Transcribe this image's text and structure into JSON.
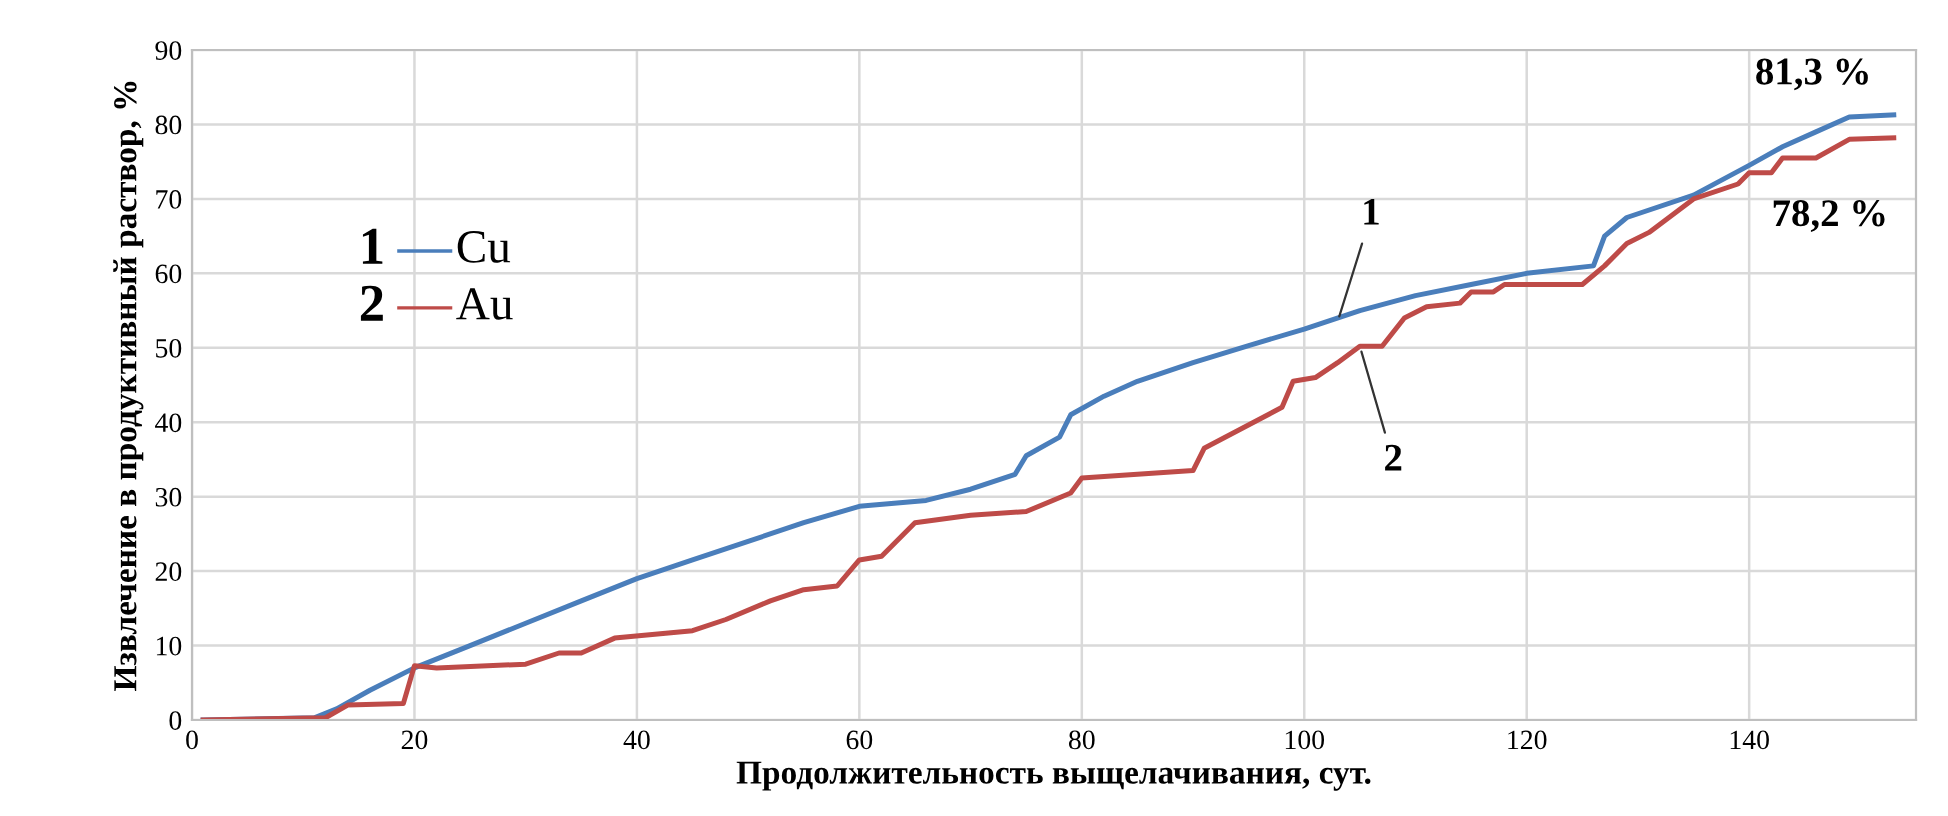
{
  "chart_data": {
    "type": "line",
    "xlabel": "Продолжительность выщелачивания, сут.",
    "ylabel": "Извлечение в продуктивный раствор, %",
    "xlim": [
      0,
      155
    ],
    "ylim": [
      0,
      90
    ],
    "xticks": [
      0,
      20,
      40,
      60,
      80,
      100,
      120,
      140
    ],
    "yticks": [
      0,
      10,
      20,
      30,
      40,
      50,
      60,
      70,
      80,
      90
    ],
    "grid": true,
    "legend": "top left",
    "series": [
      {
        "name": "Cu",
        "color": "#4a7ebb",
        "x": [
          1,
          11,
          13,
          16,
          20,
          25,
          30,
          35,
          40,
          45,
          50,
          55,
          60,
          66,
          70,
          74,
          75,
          78,
          79,
          82,
          85,
          90,
          95,
          100,
          105,
          110,
          115,
          120,
          126,
          127,
          129,
          135,
          140,
          143,
          146,
          149,
          153
        ],
        "values": [
          0,
          0.3,
          1.5,
          4,
          7,
          10,
          13,
          16,
          19,
          21.5,
          24,
          26.5,
          28.7,
          29.5,
          31,
          33,
          35.5,
          38,
          41,
          43.5,
          45.5,
          48,
          50.3,
          52.5,
          55,
          57,
          58.5,
          60,
          61,
          65,
          67.5,
          70.5,
          74.5,
          77,
          79,
          81,
          81.3
        ]
      },
      {
        "name": "Au",
        "color": "#be4b48",
        "x": [
          1,
          12,
          14,
          19,
          20,
          22,
          30,
          33,
          35,
          38,
          45,
          48,
          52,
          55,
          58,
          60,
          62,
          65,
          70,
          75,
          79,
          80,
          90,
          91,
          98,
          99,
          101,
          103,
          105,
          107,
          109,
          111,
          114,
          115,
          117,
          118,
          125,
          127,
          129,
          131,
          135,
          139,
          140,
          142,
          143,
          146,
          149,
          153
        ],
        "values": [
          0,
          0.3,
          2,
          2.2,
          7.3,
          7,
          7.5,
          9,
          9,
          11,
          12,
          13.5,
          16,
          17.5,
          18,
          21.5,
          22,
          26.5,
          27.5,
          28,
          30.5,
          32.5,
          33.5,
          36.5,
          42,
          45.5,
          46,
          48,
          50.2,
          50.2,
          54,
          55.5,
          56,
          57.5,
          57.5,
          58.5,
          58.5,
          61,
          64,
          65.5,
          70,
          72,
          73.5,
          73.5,
          75.5,
          75.5,
          78,
          78.2
        ]
      }
    ],
    "annotations": [
      "1",
      "2",
      {
        "text": "1",
        "x": 103,
        "y": 53.5
      },
      {
        "text": "2",
        "x": 105,
        "y": 50.2
      },
      {
        "text": "81,3 %",
        "x": 153,
        "y": 81.3
      },
      {
        "text": "78,2 %",
        "x": 153,
        "y": 78.2
      }
    ]
  }
}
